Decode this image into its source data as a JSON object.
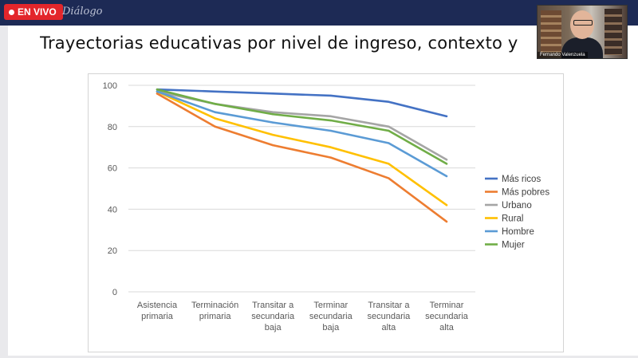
{
  "stream": {
    "live_label": "EN VIVO",
    "brand_text": "Diálogo",
    "speaker_name": "Fernando Valenzuela"
  },
  "slide": {
    "title": "Trayectorias educativas por nivel de ingreso, contexto y"
  },
  "colors": {
    "Más ricos": "#4472c4",
    "Más pobres": "#ed7d31",
    "Urbano": "#a5a5a5",
    "Rural": "#ffc000",
    "Hombre": "#5b9bd5",
    "Mujer": "#70ad47"
  },
  "chart_data": {
    "type": "line",
    "title": "",
    "xlabel": "",
    "ylabel": "",
    "ylim": [
      0,
      100
    ],
    "yticks": [
      0,
      20,
      40,
      60,
      80,
      100
    ],
    "grid": true,
    "legend_position": "right",
    "categories": [
      [
        "Asistencia",
        "primaria"
      ],
      [
        "Terminación",
        "primaria"
      ],
      [
        "Transitar a",
        "secundaria",
        "baja"
      ],
      [
        "Terminar",
        "secundaria",
        "baja"
      ],
      [
        "Transitar a",
        "secundaria",
        "alta"
      ],
      [
        "Terminar",
        "secundaria",
        "alta"
      ]
    ],
    "series": [
      {
        "name": "Más ricos",
        "values": [
          98,
          97,
          96,
          95,
          92,
          85
        ]
      },
      {
        "name": "Más pobres",
        "values": [
          96,
          80,
          71,
          65,
          55,
          34
        ]
      },
      {
        "name": "Urbano",
        "values": [
          97,
          91,
          87,
          85,
          80,
          64
        ]
      },
      {
        "name": "Rural",
        "values": [
          97,
          84,
          76,
          70,
          62,
          42
        ]
      },
      {
        "name": "Hombre",
        "values": [
          97,
          87,
          82,
          78,
          72,
          56
        ]
      },
      {
        "name": "Mujer",
        "values": [
          98,
          91,
          86,
          83,
          78,
          62
        ]
      }
    ]
  }
}
